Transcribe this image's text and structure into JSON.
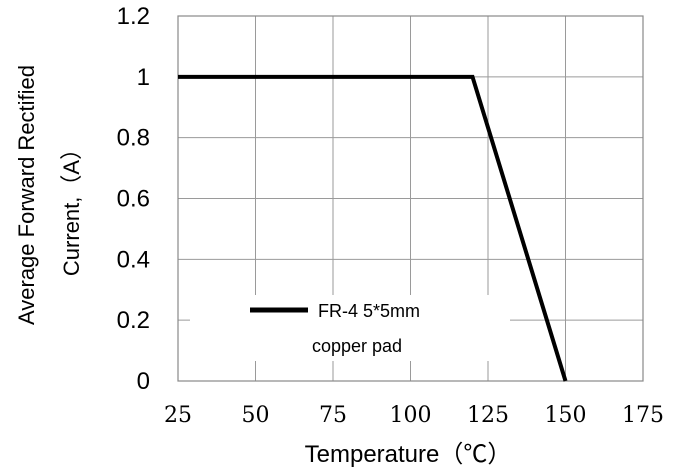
{
  "chart_data": {
    "type": "line",
    "title": "",
    "xlabel": "Temperature（℃）",
    "ylabel_line1": "Average Forward Rectified",
    "ylabel_line2": "Current,（A）",
    "xlim": [
      25,
      175
    ],
    "ylim": [
      0,
      1.2
    ],
    "x_ticks": [
      "25",
      "50",
      "75",
      "100",
      "125",
      "150",
      "175"
    ],
    "y_ticks": [
      "0",
      "0.2",
      "0.4",
      "0.6",
      "0.8",
      "1",
      "1.2"
    ],
    "grid": true,
    "series": [
      {
        "name": "FR-4 5*5mm copper pad",
        "color": "#000000",
        "x": [
          25,
          120,
          150
        ],
        "y": [
          1,
          1,
          0
        ]
      }
    ],
    "legend": {
      "line1": "FR-4  5*5mm",
      "line2": "copper pad",
      "placement": "bottom-center"
    }
  }
}
